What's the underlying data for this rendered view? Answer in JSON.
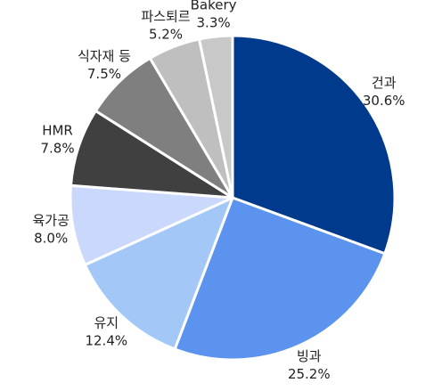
{
  "chart_data": {
    "type": "pie",
    "categories": [
      "건과",
      "빙과",
      "유지",
      "육가공",
      "HMR",
      "식자재 등",
      "파스퇴르",
      "Bakery"
    ],
    "values": [
      30.6,
      25.2,
      12.4,
      8.0,
      7.8,
      7.5,
      5.2,
      3.3
    ],
    "value_labels": [
      "30.6%",
      "25.2%",
      "12.4%",
      "8.0%",
      "7.8%",
      "7.5%",
      "5.2%",
      "3.3%"
    ],
    "colors": [
      "#003a8c",
      "#5b93ee",
      "#a3c8f7",
      "#c9d8fb",
      "#404040",
      "#7f7f7f",
      "#bfbfbf",
      "#c8c8c8"
    ]
  }
}
